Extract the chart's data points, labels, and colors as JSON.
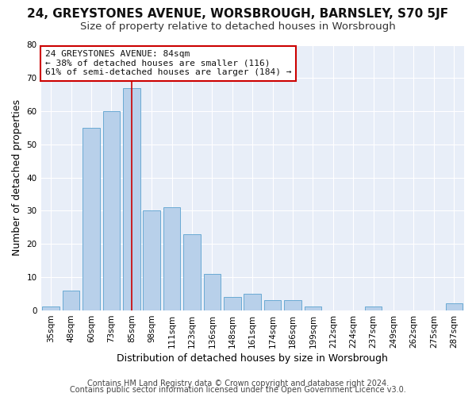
{
  "title": "24, GREYSTONES AVENUE, WORSBROUGH, BARNSLEY, S70 5JF",
  "subtitle": "Size of property relative to detached houses in Worsbrough",
  "xlabel": "Distribution of detached houses by size in Worsbrough",
  "ylabel": "Number of detached properties",
  "bar_labels": [
    "35sqm",
    "48sqm",
    "60sqm",
    "73sqm",
    "85sqm",
    "98sqm",
    "111sqm",
    "123sqm",
    "136sqm",
    "148sqm",
    "161sqm",
    "174sqm",
    "186sqm",
    "199sqm",
    "212sqm",
    "224sqm",
    "237sqm",
    "249sqm",
    "262sqm",
    "275sqm",
    "287sqm"
  ],
  "bar_values": [
    1,
    6,
    55,
    60,
    67,
    30,
    31,
    23,
    11,
    4,
    5,
    3,
    3,
    1,
    0,
    0,
    1,
    0,
    0,
    0,
    2
  ],
  "bar_color": "#b8d0ea",
  "bar_edgecolor": "#6aaad4",
  "vline_color": "#cc0000",
  "annotation_title": "24 GREYSTONES AVENUE: 84sqm",
  "annotation_line1": "← 38% of detached houses are smaller (116)",
  "annotation_line2": "61% of semi-detached houses are larger (184) →",
  "annotation_box_edgecolor": "#cc0000",
  "annotation_box_facecolor": "#ffffff",
  "ylim": [
    0,
    80
  ],
  "yticks": [
    0,
    10,
    20,
    30,
    40,
    50,
    60,
    70,
    80
  ],
  "footer1": "Contains HM Land Registry data © Crown copyright and database right 2024.",
  "footer2": "Contains public sector information licensed under the Open Government Licence v3.0.",
  "plot_bg_color": "#e8eef8",
  "fig_bg_color": "#ffffff",
  "grid_color": "#ffffff",
  "title_fontsize": 11,
  "subtitle_fontsize": 9.5,
  "axis_label_fontsize": 9,
  "tick_fontsize": 7.5,
  "annotation_fontsize": 8,
  "footer_fontsize": 7
}
